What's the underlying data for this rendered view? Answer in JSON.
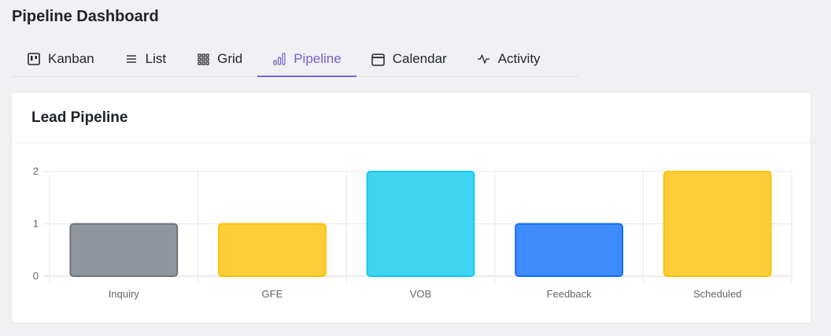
{
  "page": {
    "title": "Pipeline Dashboard"
  },
  "tabs": [
    {
      "label": "Kanban",
      "icon": "kanban-icon",
      "active": false
    },
    {
      "label": "List",
      "icon": "list-icon",
      "active": false
    },
    {
      "label": "Grid",
      "icon": "grid-icon",
      "active": false
    },
    {
      "label": "Pipeline",
      "icon": "bar-chart-icon",
      "active": true
    },
    {
      "label": "Calendar",
      "icon": "calendar-icon",
      "active": false
    },
    {
      "label": "Activity",
      "icon": "activity-icon",
      "active": false
    }
  ],
  "card": {
    "title": "Lead Pipeline"
  },
  "colors": {
    "accent": "#6f5fd0"
  },
  "chart_data": {
    "type": "bar",
    "categories": [
      "Inquiry",
      "GFE",
      "VOB",
      "Feedback",
      "Scheduled"
    ],
    "values": [
      1,
      1,
      2,
      1,
      2
    ],
    "colors": [
      "#8e959c",
      "#ffcd38",
      "#3fd5f2",
      "#3f8bfd",
      "#ffcd38"
    ],
    "border_colors": [
      "#6c757d",
      "#ffc107",
      "#0dcaf0",
      "#0d6efd",
      "#ffc107"
    ],
    "ylim": [
      0,
      2
    ],
    "yticks": [
      0,
      1,
      2
    ],
    "title": "",
    "xlabel": "",
    "ylabel": "",
    "grid": true
  }
}
